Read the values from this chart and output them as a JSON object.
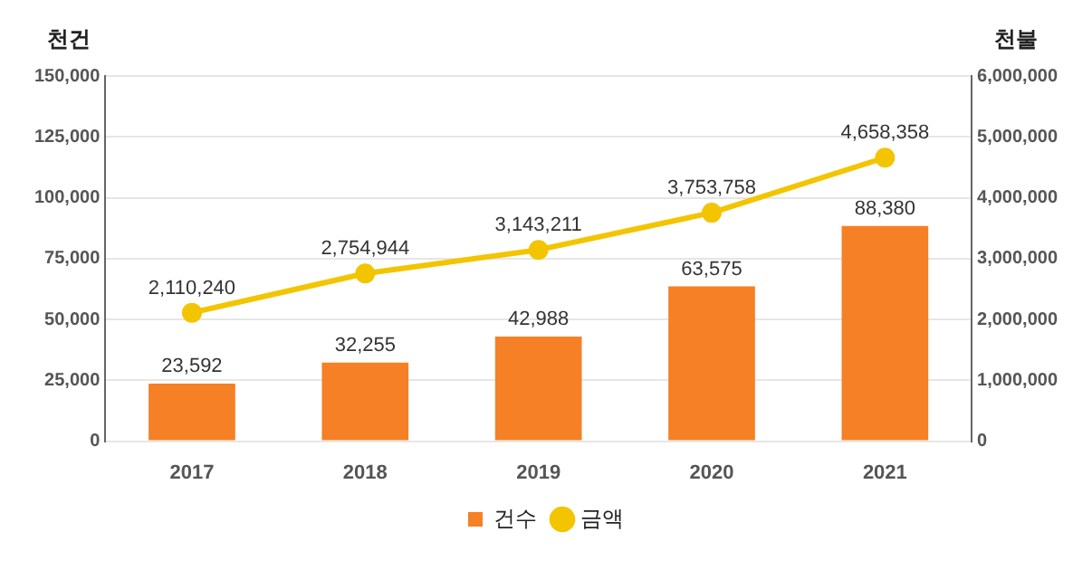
{
  "chart_data": {
    "type": "bar",
    "ylabel": "천건",
    "y2label": "천불",
    "categories": [
      "2017",
      "2018",
      "2019",
      "2020",
      "2021"
    ],
    "series": [
      {
        "name": "건수",
        "color": "#f58025",
        "values": [
          23592,
          32255,
          42988,
          63575,
          88380
        ],
        "value_labels": [
          "23,592",
          "32,255",
          "42,988",
          "63,575",
          "88,380"
        ]
      },
      {
        "name": "금액",
        "type": "line",
        "axis": "y2",
        "color": "#f2c500",
        "marker": "circle",
        "values": [
          2110240,
          2754944,
          3143211,
          3753758,
          4658358
        ],
        "value_labels": [
          "2,110,240",
          "2,754,944",
          "3,143,211",
          "3,753,758",
          "4,658,358"
        ]
      }
    ],
    "ylim": [
      0,
      150000
    ],
    "yticks": [
      0,
      {
        "value": 25000,
        "label": "25,000"
      },
      {
        "value": 50000,
        "label": "50,000"
      },
      {
        "value": 75000,
        "label": "75,000"
      },
      {
        "value": 100000,
        "label": "100,000"
      },
      {
        "value": 125000,
        "label": "125,000"
      },
      {
        "value": 150000,
        "label": "150,000"
      }
    ],
    "y2lim": [
      0,
      6000000
    ],
    "y2ticks": [
      0,
      {
        "value": 1000000,
        "label": "1,000,000"
      },
      {
        "value": 2000000,
        "label": "2,000,000"
      },
      {
        "value": 3000000,
        "label": "3,000,000"
      },
      {
        "value": 4000000,
        "label": "4,000,000"
      },
      {
        "value": 5000000,
        "label": "5,000,000"
      },
      {
        "value": 6000000,
        "label": "6,000,000"
      }
    ],
    "grid": "y",
    "legend": "bottom"
  }
}
